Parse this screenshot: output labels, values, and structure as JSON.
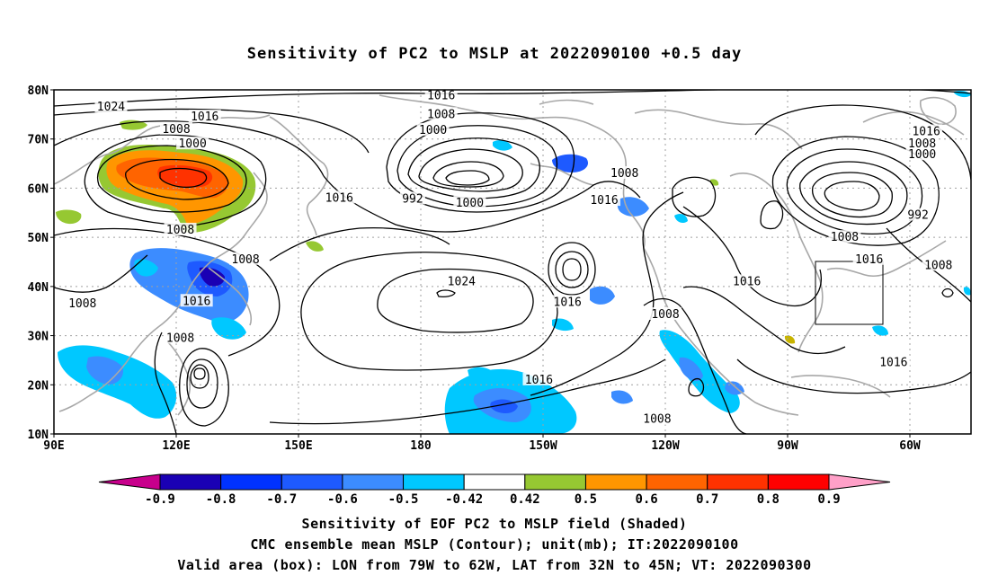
{
  "title": "Sensitivity of PC2 to MSLP at 2022090100 +0.5 day",
  "map": {
    "lat_ticks": [
      "80N",
      "70N",
      "60N",
      "50N",
      "40N",
      "30N",
      "20N",
      "10N"
    ],
    "lon_ticks": [
      "90E",
      "120E",
      "150E",
      "180",
      "150W",
      "120W",
      "90W",
      "60W"
    ],
    "lat_range": [
      10,
      80
    ],
    "lon_range": [
      90,
      315
    ],
    "valid_box": {
      "lon": [
        "79W",
        "62W"
      ],
      "lat": [
        "32N",
        "45N"
      ]
    }
  },
  "contour_labels": [
    {
      "text": "1016",
      "lon": 185,
      "lat": 78.8
    },
    {
      "text": "1024",
      "lon": 104,
      "lat": 76.5
    },
    {
      "text": "1016",
      "lon": 127,
      "lat": 74.5
    },
    {
      "text": "1008",
      "lon": 120,
      "lat": 72.0
    },
    {
      "text": "1008",
      "lon": 185,
      "lat": 75.0
    },
    {
      "text": "1000",
      "lon": 183,
      "lat": 71.8
    },
    {
      "text": "1000",
      "lon": 124,
      "lat": 69.0
    },
    {
      "text": "1016",
      "lon": 304,
      "lat": 71.5
    },
    {
      "text": "1008",
      "lon": 303,
      "lat": 69.0
    },
    {
      "text": "1000",
      "lon": 303,
      "lat": 66.8
    },
    {
      "text": "1008",
      "lon": 230,
      "lat": 63.0
    },
    {
      "text": "1016",
      "lon": 160,
      "lat": 58.0
    },
    {
      "text": "992",
      "lon": 178,
      "lat": 57.8
    },
    {
      "text": "1000",
      "lon": 192,
      "lat": 57.0
    },
    {
      "text": "1016",
      "lon": 225,
      "lat": 57.5
    },
    {
      "text": "992",
      "lon": 302,
      "lat": 54.5
    },
    {
      "text": "1008",
      "lon": 121,
      "lat": 51.5
    },
    {
      "text": "1008",
      "lon": 284,
      "lat": 50.0
    },
    {
      "text": "1008",
      "lon": 137,
      "lat": 45.5
    },
    {
      "text": "1016",
      "lon": 290,
      "lat": 45.5
    },
    {
      "text": "1008",
      "lon": 307,
      "lat": 44.3
    },
    {
      "text": "1024",
      "lon": 190,
      "lat": 41.0
    },
    {
      "text": "1016",
      "lon": 260,
      "lat": 41.0
    },
    {
      "text": "1016",
      "lon": 125,
      "lat": 37.0
    },
    {
      "text": "1016",
      "lon": 216,
      "lat": 36.8
    },
    {
      "text": "1008",
      "lon": 97,
      "lat": 36.5
    },
    {
      "text": "1008",
      "lon": 240,
      "lat": 34.3
    },
    {
      "text": "1008",
      "lon": 121,
      "lat": 29.5
    },
    {
      "text": "1016",
      "lon": 296,
      "lat": 24.5
    },
    {
      "text": "1016",
      "lon": 209,
      "lat": 21.0
    },
    {
      "text": "1008",
      "lon": 238,
      "lat": 13.0
    }
  ],
  "colorbar": {
    "labels": [
      "-0.9",
      "-0.8",
      "-0.7",
      "-0.6",
      "-0.5",
      "-0.42",
      "0.42",
      "0.5",
      "0.6",
      "0.7",
      "0.8",
      "0.9"
    ],
    "colors": [
      "#c8008c",
      "#1a00b4",
      "#0032ff",
      "#1e5aff",
      "#3c8cff",
      "#00c8ff",
      "#ffffff",
      "#96c832",
      "#ff9600",
      "#ff6400",
      "#ff3200",
      "#ff0000",
      "#ffa0c8"
    ]
  },
  "captions": {
    "line1": "Sensitivity of EOF PC2 to MSLP field (Shaded)",
    "line2": "CMC ensemble mean MSLP (Contour); unit(mb); IT:2022090100",
    "line3": "Valid area (box): LON from 79W to 62W, LAT from 32N to 45N; VT: 2022090300"
  },
  "colors": {
    "contour": "#000000",
    "coast": "#a8a8a8",
    "grid": "#a0a0a0"
  }
}
